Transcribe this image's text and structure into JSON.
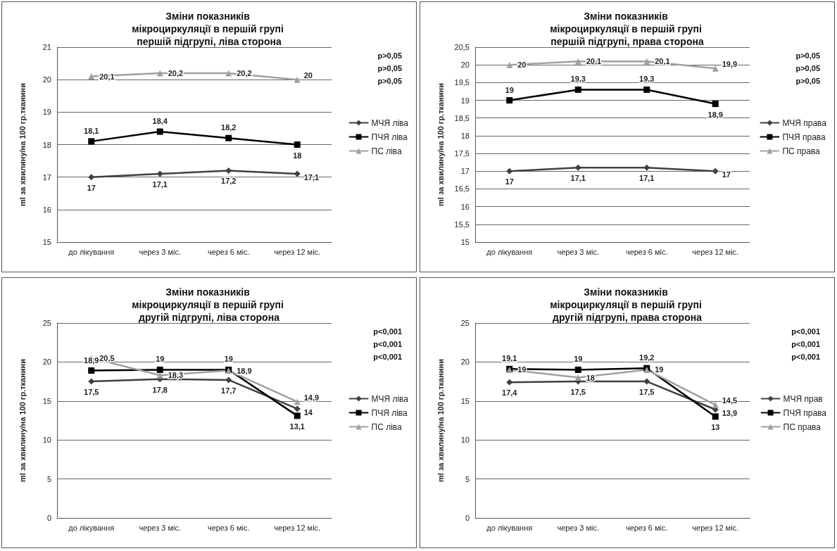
{
  "chart_data": [
    {
      "type": "line",
      "title": "Зміни показників мікроциркуляції в першій групі першій підгрупі, ліва сторона",
      "ylabel": "ml за хвилину/на 100 гр.тканини",
      "categories": [
        "до лікування",
        "через 3 міс.",
        "через 6 міс.",
        "через 12 міс."
      ],
      "series": [
        {
          "name": "МЧЯ ліва",
          "color": "#404040",
          "marker": "diamond",
          "values": [
            17,
            17.1,
            17.2,
            17.1
          ],
          "value_labels": [
            "17",
            "17,1",
            "17,2",
            "17,1"
          ]
        },
        {
          "name": "ПЧЯ ліва",
          "color": "#000000",
          "marker": "square",
          "values": [
            18.1,
            18.4,
            18.2,
            18
          ],
          "value_labels": [
            "18,1",
            "18,4",
            "18,2",
            "18"
          ]
        },
        {
          "name": "ПС ліва",
          "color": "#a0a0a0",
          "marker": "triangle",
          "values": [
            20.1,
            20.2,
            20.2,
            20
          ],
          "value_labels": [
            "20,1",
            "20,2",
            "20,2",
            "20"
          ]
        }
      ],
      "ylim": [
        15,
        21
      ],
      "yticks": [
        15,
        16,
        17,
        18,
        19,
        20,
        21
      ],
      "grid": "y",
      "legend": "right",
      "line_style": "solid",
      "annotations": [
        "p>0,05",
        "p>0,05",
        "p>0,05"
      ]
    },
    {
      "type": "line",
      "title": "Зміни показників мікроциркуляції в першій групі першій підгрупі, права сторона",
      "ylabel": "ml за хвилину/на 100 гр.тканини",
      "categories": [
        "до лікування",
        "через 3 міс.",
        "через 6 міс.",
        "через 12 міс."
      ],
      "series": [
        {
          "name": "МЧЯ права",
          "color": "#404040",
          "marker": "diamond",
          "values": [
            17,
            17.1,
            17.1,
            17
          ],
          "value_labels": [
            "17",
            "17,1",
            "17,1",
            "17"
          ]
        },
        {
          "name": "ПЧЯ права",
          "color": "#000000",
          "marker": "square",
          "values": [
            19,
            19.3,
            19.3,
            18.9
          ],
          "value_labels": [
            "19",
            "19,3",
            "19,3",
            "18,9"
          ]
        },
        {
          "name": "ПС права",
          "color": "#a0a0a0",
          "marker": "triangle",
          "values": [
            20,
            20.1,
            20.1,
            19.9
          ],
          "value_labels": [
            "20",
            "20,1",
            "20,1",
            "19,9"
          ]
        }
      ],
      "ylim": [
        15,
        20.5
      ],
      "yticks": [
        15,
        {
          "value": 15.5,
          "label": "15,5"
        },
        16,
        {
          "value": 16.5,
          "label": "16,5"
        },
        17,
        {
          "value": 17.5,
          "label": "17,5"
        },
        18,
        {
          "value": 18.5,
          "label": "18,5"
        },
        19,
        {
          "value": 19.5,
          "label": "19,5"
        },
        20,
        {
          "value": 20.5,
          "label": "20,5"
        }
      ],
      "grid": "y",
      "legend": "right",
      "line_style": "solid",
      "annotations": [
        "p>0,05",
        "p>0,05",
        "p>0,05"
      ]
    },
    {
      "type": "line",
      "title": "Зміни показників мікроциркуляції в першій групі другій підгрупі, ліва сторона",
      "ylabel": "ml за хвилину/на 100 гр.тканини",
      "categories": [
        "до лікування",
        "через 3 міс.",
        "через 6 міс.",
        "через 12 міс."
      ],
      "series": [
        {
          "name": "МЧЯ ліва",
          "color": "#404040",
          "marker": "diamond",
          "values": [
            17.5,
            17.8,
            17.7,
            14
          ],
          "value_labels": [
            "17,5",
            "17,8",
            "17,7",
            "14"
          ]
        },
        {
          "name": "ПЧЯ ліва",
          "color": "#000000",
          "marker": "square",
          "values": [
            18.9,
            19,
            19,
            13.1
          ],
          "value_labels": [
            "18,9",
            "19",
            "19",
            "13,1"
          ]
        },
        {
          "name": "ПС ліва",
          "color": "#a0a0a0",
          "marker": "triangle",
          "values": [
            20.5,
            18.3,
            18.9,
            14.9
          ],
          "value_labels": [
            "20,5",
            "18,3",
            "18,9",
            "14,9"
          ]
        }
      ],
      "ylim": [
        0,
        25
      ],
      "yticks": [
        0,
        5,
        10,
        15,
        20,
        25
      ],
      "grid": "y",
      "legend": "right",
      "line_style": "solid",
      "annotations": [
        "p<0,001",
        "p<0,001",
        "p<0,001"
      ]
    },
    {
      "type": "line",
      "title": "Зміни показників мікроциркуляції в першій групі другій підгрупі, права сторона",
      "ylabel": "ml за хвилину/на 100 гр.тканини",
      "categories": [
        "до лікування",
        "через 3 міс.",
        "через 6 міс.",
        "через 12 міс."
      ],
      "series": [
        {
          "name": "МЧЯ прав",
          "color": "#404040",
          "marker": "diamond",
          "values": [
            17.4,
            17.5,
            17.5,
            13.9
          ],
          "value_labels": [
            "17,4",
            "17,5",
            "17,5",
            "13,9"
          ]
        },
        {
          "name": "ПЧЯ права",
          "color": "#000000",
          "marker": "square",
          "values": [
            19.1,
            19,
            19.2,
            13
          ],
          "value_labels": [
            "19,1",
            "19",
            "19,2",
            "13"
          ]
        },
        {
          "name": "ПС права",
          "color": "#a0a0a0",
          "marker": "triangle",
          "values": [
            19,
            18,
            19,
            14.5
          ],
          "value_labels": [
            "19",
            "18",
            "19",
            "14,5"
          ]
        }
      ],
      "ylim": [
        0,
        25
      ],
      "yticks": [
        0,
        5,
        10,
        15,
        20,
        25
      ],
      "grid": "y",
      "legend": "right",
      "line_style": "solid",
      "annotations": [
        "p<0,001",
        "p<0,001",
        "p<0,001"
      ]
    }
  ]
}
